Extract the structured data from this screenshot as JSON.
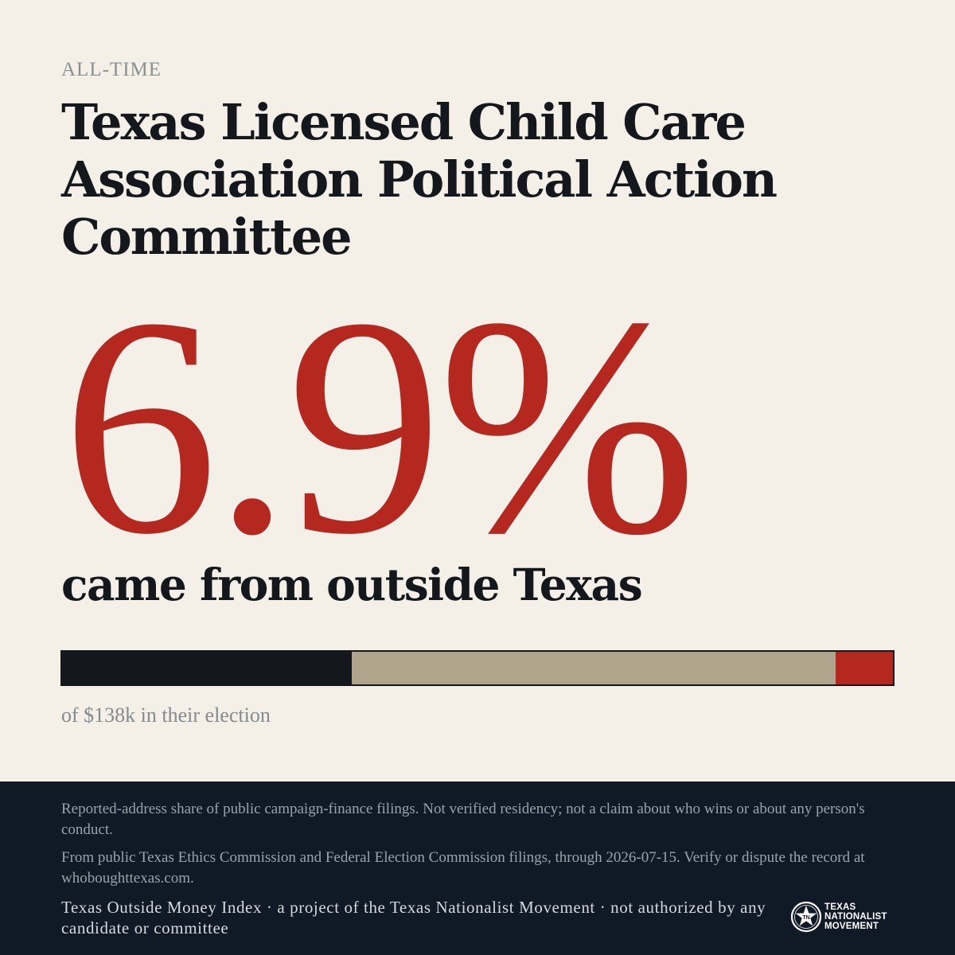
{
  "header": {
    "eyebrow": "ALL-TIME",
    "title": "Texas Licensed Child Care Association Political Action Committee"
  },
  "stat": {
    "value_text": "6.9%",
    "value": 6.9,
    "caption": "came from outside Texas"
  },
  "bar": {
    "segments": [
      {
        "key": "segment-1",
        "fraction": 0.349,
        "color": "#14181d"
      },
      {
        "key": "segment-2",
        "fraction": 0.582,
        "color": "#b0a58c"
      },
      {
        "key": "outside-texas",
        "fraction": 0.069,
        "color": "#b52820"
      }
    ],
    "caption": "of $138k in their election"
  },
  "footer": {
    "note1": "Reported-address share of public campaign-finance filings. Not verified residency; not a claim about who wins or about any person's conduct.",
    "note2": "From public Texas Ethics Commission and Federal Election Commission filings, through 2026-07-15. Verify or dispute the record at whoboughttexas.com.",
    "credit": "Texas Outside Money Index · a project of the Texas Nationalist Movement · not authorized by any candidate or committee",
    "logo": {
      "icon": "star-seal-icon",
      "line1": "TEXAS",
      "line2": "NATIONALIST",
      "line3": "MOVEMENT"
    }
  },
  "colors": {
    "background": "#f4f0e8",
    "accent": "#b52820",
    "footer_bg": "#101a27",
    "text": "#14181d"
  }
}
